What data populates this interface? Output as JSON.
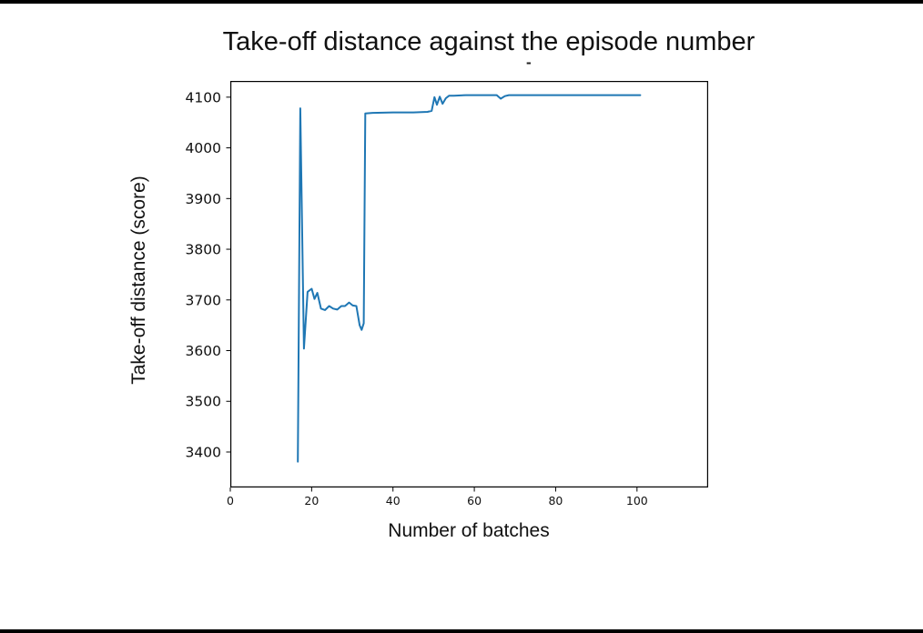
{
  "page": {
    "background": "#ffffff",
    "frame_color": "#000000",
    "stray_mark": "-"
  },
  "chart_data": {
    "type": "line",
    "title": "Take-off distance against the episode number",
    "xlabel": "Number of batches",
    "ylabel": "Take-off distance (score)",
    "xlim": [
      0,
      117.5
    ],
    "ylim": [
      3330,
      4132
    ],
    "xticks": [
      0,
      20,
      40,
      60,
      80,
      100
    ],
    "yticks": [
      3400,
      3500,
      3600,
      3700,
      3800,
      3900,
      4000,
      4100
    ],
    "grid": false,
    "legend": "none",
    "line_color": "#1f77b4",
    "series": [
      {
        "name": "take-off distance",
        "x": [
          16.6,
          17.2,
          18.1,
          19.0,
          20.0,
          20.7,
          21.4,
          22.3,
          23.3,
          24.3,
          25.3,
          26.3,
          27.3,
          28.2,
          29.2,
          30.1,
          31.0,
          31.8,
          32.3,
          32.8,
          33.2,
          35,
          40,
          45,
          48.5,
          49.5,
          50.2,
          50.8,
          51.5,
          52.2,
          53.0,
          53.8,
          55,
          58,
          62,
          65.5,
          66.5,
          67.5,
          68.5,
          72,
          80,
          90,
          100.8
        ],
        "y": [
          3381,
          4078,
          3604,
          3716,
          3722,
          3702,
          3714,
          3683,
          3680,
          3688,
          3683,
          3681,
          3688,
          3688,
          3695,
          3689,
          3688,
          3650,
          3641,
          3654,
          4068,
          4069,
          4070,
          4070,
          4071,
          4073,
          4100,
          4085,
          4101,
          4087,
          4098,
          4103,
          4103,
          4104,
          4104,
          4104,
          4097,
          4102,
          4104,
          4104,
          4104,
          4104,
          4104
        ]
      }
    ]
  }
}
